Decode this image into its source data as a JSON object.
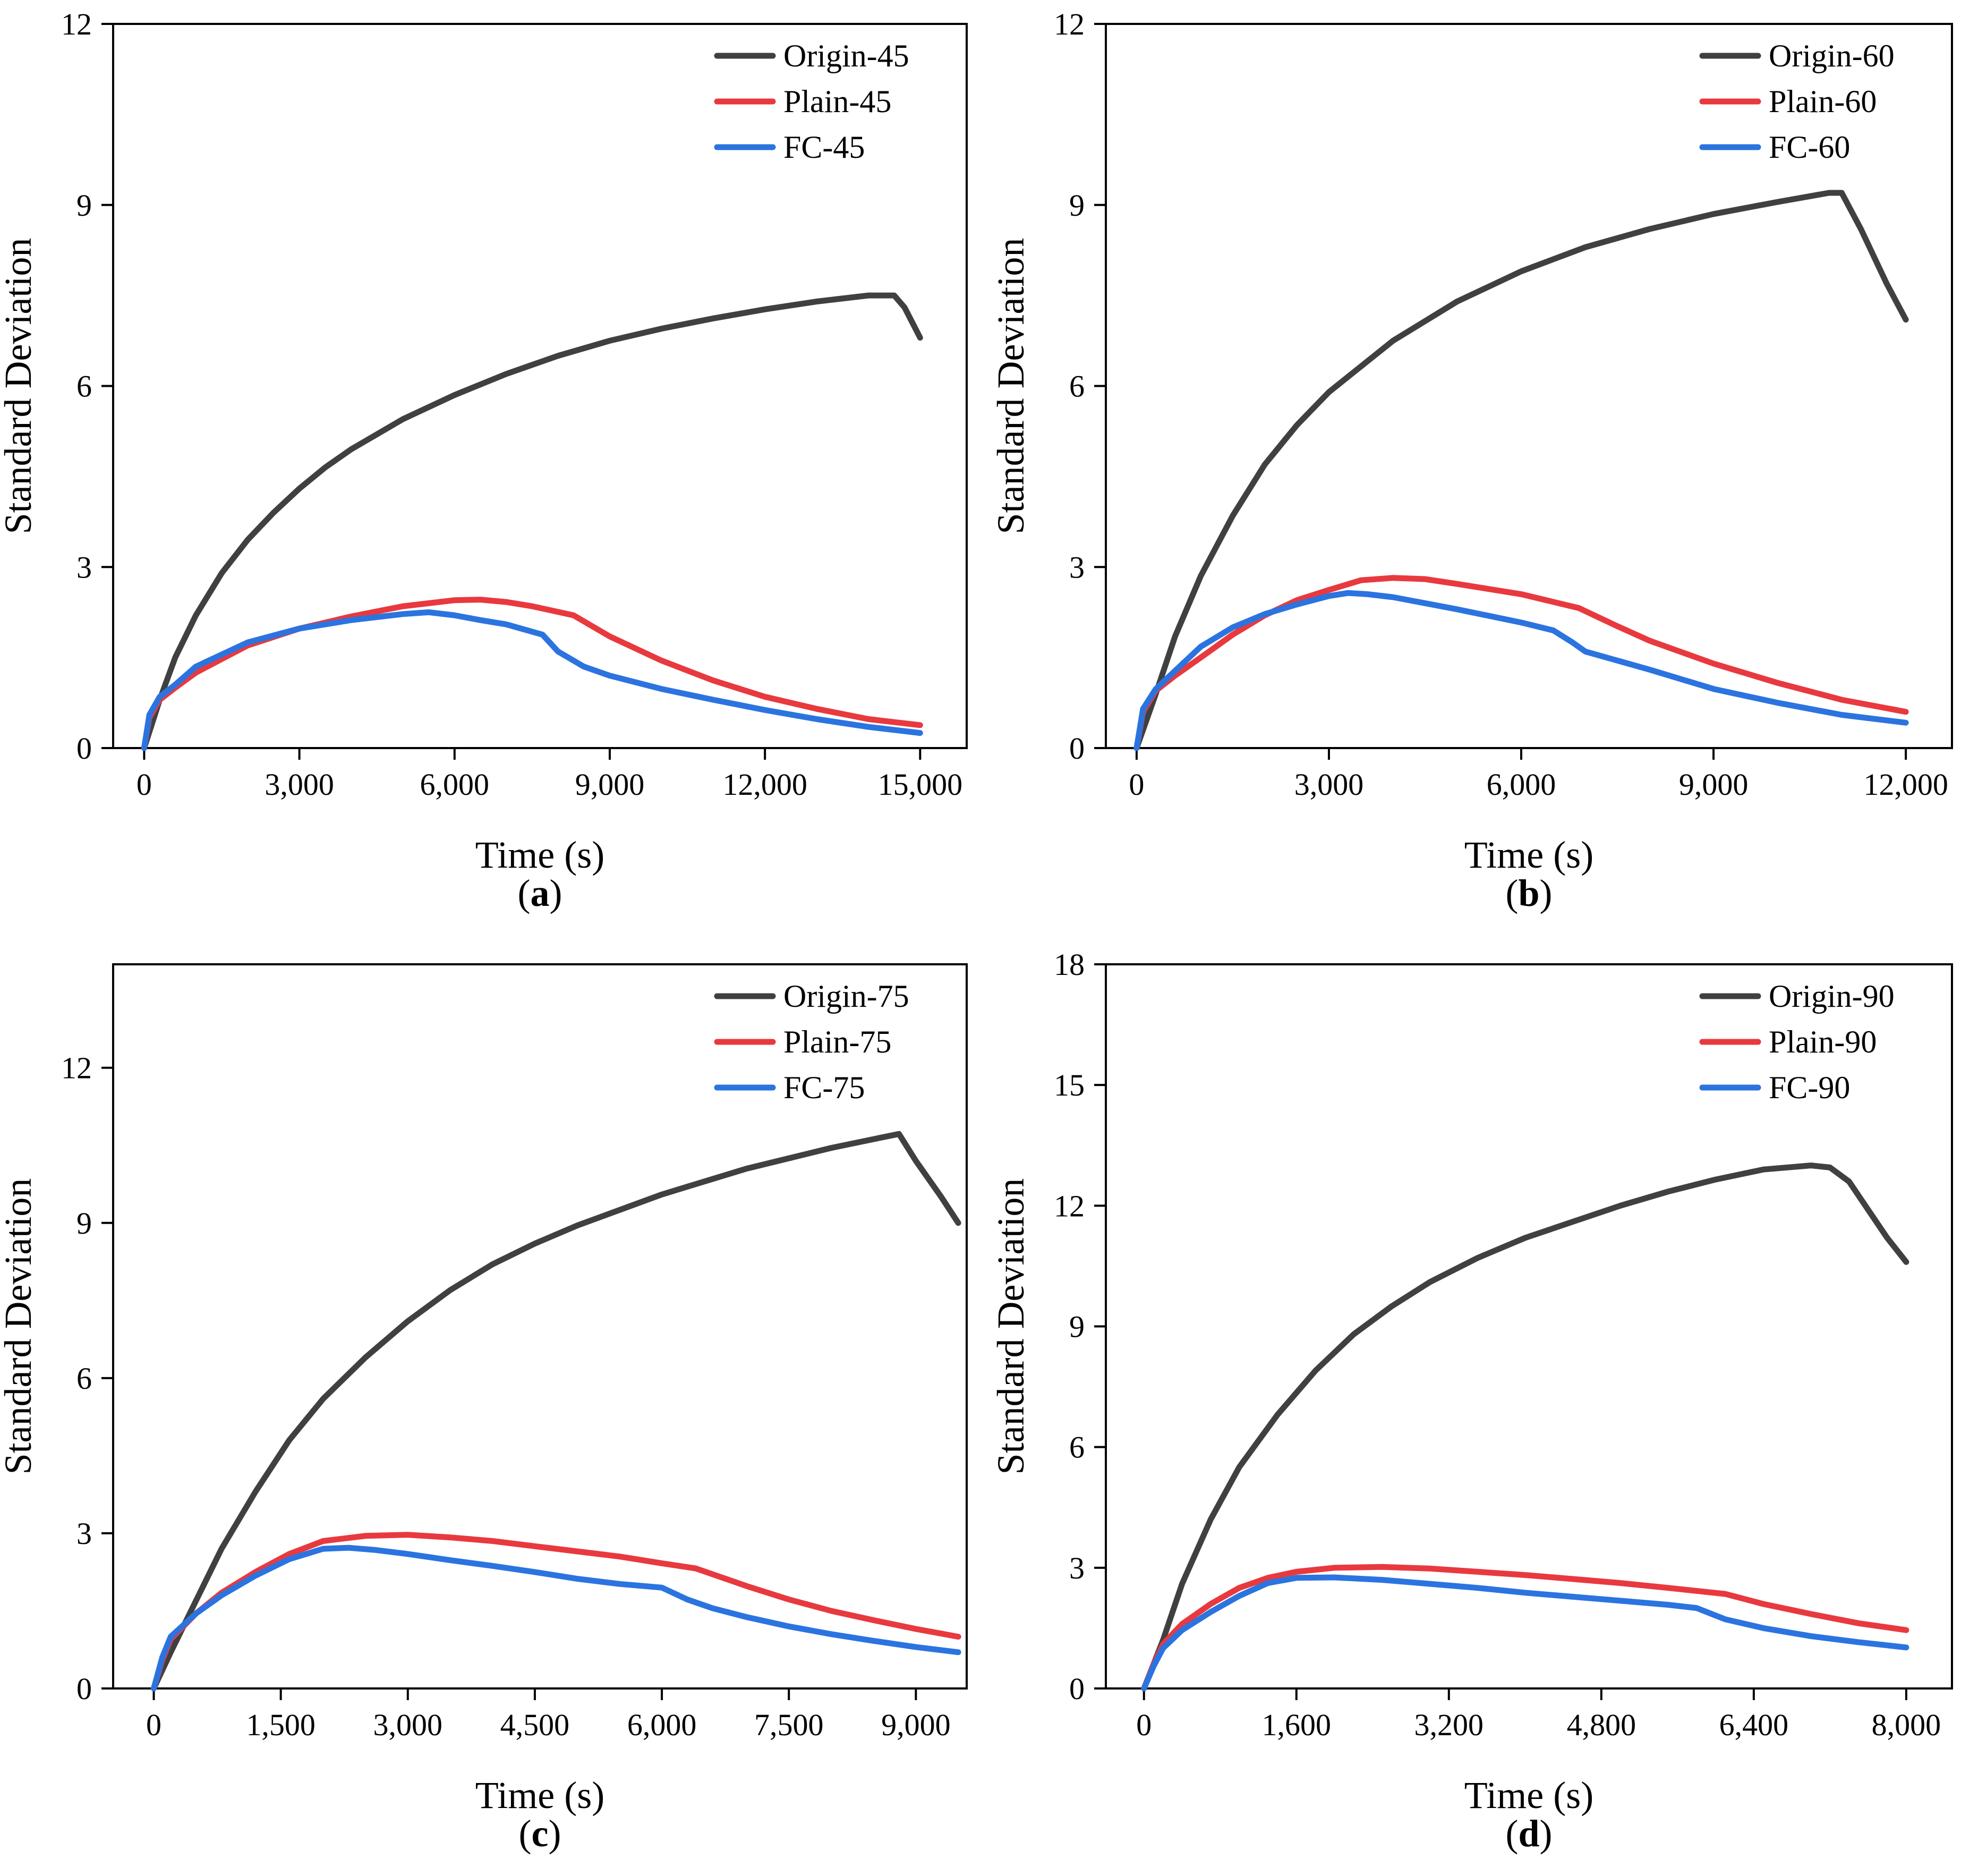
{
  "figure": {
    "colors": {
      "origin": "#404040",
      "plain": "#e8393f",
      "fc": "#2b74e0"
    }
  },
  "chart_data": [
    {
      "id": "a",
      "label_letter": "a",
      "type": "line",
      "xlabel": "Time (s)",
      "ylabel": "Standard Deviation",
      "xlim": [
        -600,
        15900
      ],
      "ylim": [
        0,
        12
      ],
      "xticks": [
        0,
        3000,
        6000,
        9000,
        12000,
        15000
      ],
      "xtick_labels": [
        "0",
        "3,000",
        "6,000",
        "9,000",
        "12,000",
        "15,000"
      ],
      "yticks": [
        0,
        3,
        6,
        9,
        12
      ],
      "ytick_labels": [
        "0",
        "3",
        "6",
        "9",
        "12"
      ],
      "legend_position": "top-right",
      "series": [
        {
          "name": "Origin-45",
          "color": "#404040",
          "x": [
            0,
            300,
            600,
            1000,
            1500,
            2000,
            2500,
            3000,
            3500,
            4000,
            5000,
            6000,
            7000,
            8000,
            9000,
            10000,
            11000,
            12000,
            13000,
            14000,
            14500,
            14700,
            15000
          ],
          "y": [
            0,
            0.8,
            1.5,
            2.2,
            2.9,
            3.45,
            3.9,
            4.3,
            4.65,
            4.95,
            5.45,
            5.85,
            6.2,
            6.5,
            6.75,
            6.95,
            7.12,
            7.27,
            7.4,
            7.5,
            7.5,
            7.3,
            6.8
          ]
        },
        {
          "name": "Plain-45",
          "color": "#e8393f",
          "x": [
            0,
            100,
            300,
            600,
            1000,
            2000,
            3000,
            4000,
            5000,
            6000,
            6500,
            7000,
            7500,
            8300,
            9000,
            10000,
            11000,
            12000,
            13000,
            14000,
            15000
          ],
          "y": [
            0,
            0.5,
            0.8,
            1.0,
            1.25,
            1.7,
            1.98,
            2.18,
            2.35,
            2.45,
            2.46,
            2.42,
            2.35,
            2.2,
            1.85,
            1.45,
            1.12,
            0.85,
            0.65,
            0.48,
            0.38
          ]
        },
        {
          "name": "FC-45",
          "color": "#2b74e0",
          "x": [
            0,
            100,
            300,
            600,
            1000,
            2000,
            3000,
            4000,
            5000,
            5500,
            6000,
            6500,
            7000,
            7700,
            8000,
            8500,
            9000,
            10000,
            11000,
            12000,
            13000,
            14000,
            15000
          ],
          "y": [
            0,
            0.55,
            0.85,
            1.05,
            1.35,
            1.75,
            1.98,
            2.12,
            2.22,
            2.25,
            2.2,
            2.12,
            2.05,
            1.88,
            1.6,
            1.35,
            1.2,
            0.98,
            0.8,
            0.63,
            0.48,
            0.35,
            0.25
          ]
        }
      ]
    },
    {
      "id": "b",
      "label_letter": "b",
      "type": "line",
      "xlabel": "Time (s)",
      "ylabel": "Standard Deviation",
      "xlim": [
        -480,
        12720
      ],
      "ylim": [
        0,
        12
      ],
      "xticks": [
        0,
        3000,
        6000,
        9000,
        12000
      ],
      "xtick_labels": [
        "0",
        "3,000",
        "6,000",
        "9,000",
        "12,000"
      ],
      "yticks": [
        0,
        3,
        6,
        9,
        12
      ],
      "ytick_labels": [
        "0",
        "3",
        "6",
        "9",
        "12"
      ],
      "legend_position": "top-right",
      "series": [
        {
          "name": "Origin-60",
          "color": "#404040",
          "x": [
            0,
            300,
            600,
            1000,
            1500,
            2000,
            2500,
            3000,
            4000,
            5000,
            6000,
            7000,
            8000,
            9000,
            10000,
            10800,
            11000,
            11300,
            11700,
            12000
          ],
          "y": [
            0,
            0.9,
            1.85,
            2.85,
            3.85,
            4.7,
            5.35,
            5.9,
            6.75,
            7.4,
            7.9,
            8.3,
            8.6,
            8.85,
            9.05,
            9.2,
            9.2,
            8.6,
            7.7,
            7.1
          ]
        },
        {
          "name": "Plain-60",
          "color": "#e8393f",
          "x": [
            0,
            100,
            300,
            600,
            1000,
            1500,
            2000,
            2500,
            3000,
            3500,
            4000,
            4500,
            5000,
            6000,
            6900,
            7500,
            8000,
            9000,
            10000,
            11000,
            12000
          ],
          "y": [
            0,
            0.6,
            0.95,
            1.2,
            1.5,
            1.88,
            2.2,
            2.45,
            2.62,
            2.78,
            2.82,
            2.8,
            2.72,
            2.55,
            2.32,
            2.02,
            1.78,
            1.4,
            1.08,
            0.8,
            0.6
          ]
        },
        {
          "name": "FC-60",
          "color": "#2b74e0",
          "x": [
            0,
            100,
            300,
            600,
            1000,
            1500,
            2000,
            2500,
            3000,
            3300,
            3600,
            4000,
            5000,
            6000,
            6500,
            6800,
            7000,
            8000,
            9000,
            10000,
            11000,
            12000
          ],
          "y": [
            0,
            0.65,
            0.98,
            1.28,
            1.68,
            2.0,
            2.22,
            2.38,
            2.52,
            2.57,
            2.55,
            2.5,
            2.3,
            2.08,
            1.95,
            1.75,
            1.6,
            1.3,
            0.98,
            0.75,
            0.55,
            0.42
          ]
        }
      ]
    },
    {
      "id": "c",
      "label_letter": "c",
      "type": "line",
      "xlabel": "Time (s)",
      "ylabel": "Standard Deviation",
      "xlim": [
        -480,
        9600
      ],
      "ylim": [
        0,
        14
      ],
      "xticks": [
        0,
        1500,
        3000,
        4500,
        6000,
        7500,
        9000
      ],
      "xtick_labels": [
        "0",
        "1,500",
        "3,000",
        "4,500",
        "6,000",
        "7,500",
        "9,000"
      ],
      "yticks": [
        0,
        3,
        6,
        9,
        12
      ],
      "ytick_labels": [
        "0",
        "3",
        "6",
        "9",
        "12"
      ],
      "legend_position": "top-right",
      "series": [
        {
          "name": "Origin-75",
          "color": "#404040",
          "x": [
            0,
            200,
            500,
            800,
            1200,
            1600,
            2000,
            2500,
            3000,
            3500,
            4000,
            4500,
            5000,
            5500,
            6000,
            6500,
            7000,
            7500,
            8000,
            8500,
            8800,
            9000,
            9300,
            9500
          ],
          "y": [
            0,
            0.7,
            1.7,
            2.7,
            3.8,
            4.8,
            5.6,
            6.4,
            7.1,
            7.7,
            8.2,
            8.6,
            8.95,
            9.25,
            9.55,
            9.8,
            10.05,
            10.25,
            10.45,
            10.62,
            10.72,
            10.2,
            9.5,
            9.0
          ]
        },
        {
          "name": "Plain-75",
          "color": "#e8393f",
          "x": [
            0,
            100,
            200,
            500,
            800,
            1200,
            1600,
            2000,
            2500,
            3000,
            3500,
            4000,
            4500,
            5000,
            5500,
            6000,
            6400,
            7000,
            7500,
            8000,
            8500,
            9000,
            9500
          ],
          "y": [
            0,
            0.55,
            0.95,
            1.45,
            1.85,
            2.25,
            2.6,
            2.85,
            2.95,
            2.97,
            2.92,
            2.85,
            2.75,
            2.65,
            2.55,
            2.42,
            2.32,
            1.98,
            1.72,
            1.5,
            1.32,
            1.15,
            1.0
          ]
        },
        {
          "name": "FC-75",
          "color": "#2b74e0",
          "x": [
            0,
            100,
            200,
            500,
            800,
            1200,
            1600,
            2000,
            2300,
            2600,
            3000,
            3500,
            4000,
            4500,
            5000,
            5500,
            6000,
            6300,
            6600,
            7000,
            7500,
            8000,
            8500,
            9000,
            9500
          ],
          "y": [
            0,
            0.6,
            1.0,
            1.45,
            1.8,
            2.18,
            2.5,
            2.7,
            2.72,
            2.68,
            2.6,
            2.48,
            2.37,
            2.25,
            2.12,
            2.02,
            1.95,
            1.72,
            1.55,
            1.38,
            1.2,
            1.05,
            0.92,
            0.8,
            0.7
          ]
        }
      ]
    },
    {
      "id": "d",
      "label_letter": "d",
      "type": "line",
      "xlabel": "Time (s)",
      "ylabel": "Standard Deviation",
      "xlim": [
        -400,
        8480
      ],
      "ylim": [
        0,
        18
      ],
      "xticks": [
        0,
        1600,
        3200,
        4800,
        6400,
        8000
      ],
      "xtick_labels": [
        "0",
        "1,600",
        "3,200",
        "4,800",
        "6,400",
        "8,000"
      ],
      "yticks": [
        0,
        3,
        6,
        9,
        12,
        15,
        18
      ],
      "ytick_labels": [
        "0",
        "3",
        "6",
        "9",
        "12",
        "15",
        "18"
      ],
      "legend_position": "top-right",
      "series": [
        {
          "name": "Origin-90",
          "color": "#404040",
          "x": [
            0,
            200,
            400,
            700,
            1000,
            1400,
            1800,
            2200,
            2600,
            3000,
            3500,
            4000,
            4500,
            5000,
            5500,
            6000,
            6500,
            7000,
            7200,
            7400,
            7600,
            7800,
            8000
          ],
          "y": [
            0,
            1.2,
            2.6,
            4.2,
            5.5,
            6.8,
            7.9,
            8.8,
            9.5,
            10.1,
            10.7,
            11.2,
            11.6,
            12.0,
            12.35,
            12.65,
            12.9,
            13.0,
            12.95,
            12.6,
            11.9,
            11.2,
            10.6
          ]
        },
        {
          "name": "Plain-90",
          "color": "#e8393f",
          "x": [
            0,
            100,
            200,
            400,
            700,
            1000,
            1300,
            1600,
            2000,
            2500,
            3000,
            3500,
            4000,
            4500,
            5000,
            5500,
            6100,
            6500,
            7000,
            7500,
            8000
          ],
          "y": [
            0,
            0.6,
            1.1,
            1.6,
            2.1,
            2.5,
            2.75,
            2.9,
            3.0,
            3.02,
            2.98,
            2.9,
            2.82,
            2.72,
            2.62,
            2.5,
            2.35,
            2.1,
            1.85,
            1.62,
            1.45
          ]
        },
        {
          "name": "FC-90",
          "color": "#2b74e0",
          "x": [
            0,
            100,
            200,
            400,
            700,
            1000,
            1300,
            1600,
            2000,
            2500,
            3000,
            3500,
            4000,
            4500,
            5000,
            5500,
            5800,
            6100,
            6500,
            7000,
            7500,
            8000
          ],
          "y": [
            0,
            0.55,
            1.0,
            1.45,
            1.9,
            2.3,
            2.62,
            2.75,
            2.76,
            2.7,
            2.6,
            2.5,
            2.38,
            2.28,
            2.18,
            2.08,
            2.0,
            1.72,
            1.5,
            1.3,
            1.15,
            1.02
          ]
        }
      ]
    }
  ]
}
